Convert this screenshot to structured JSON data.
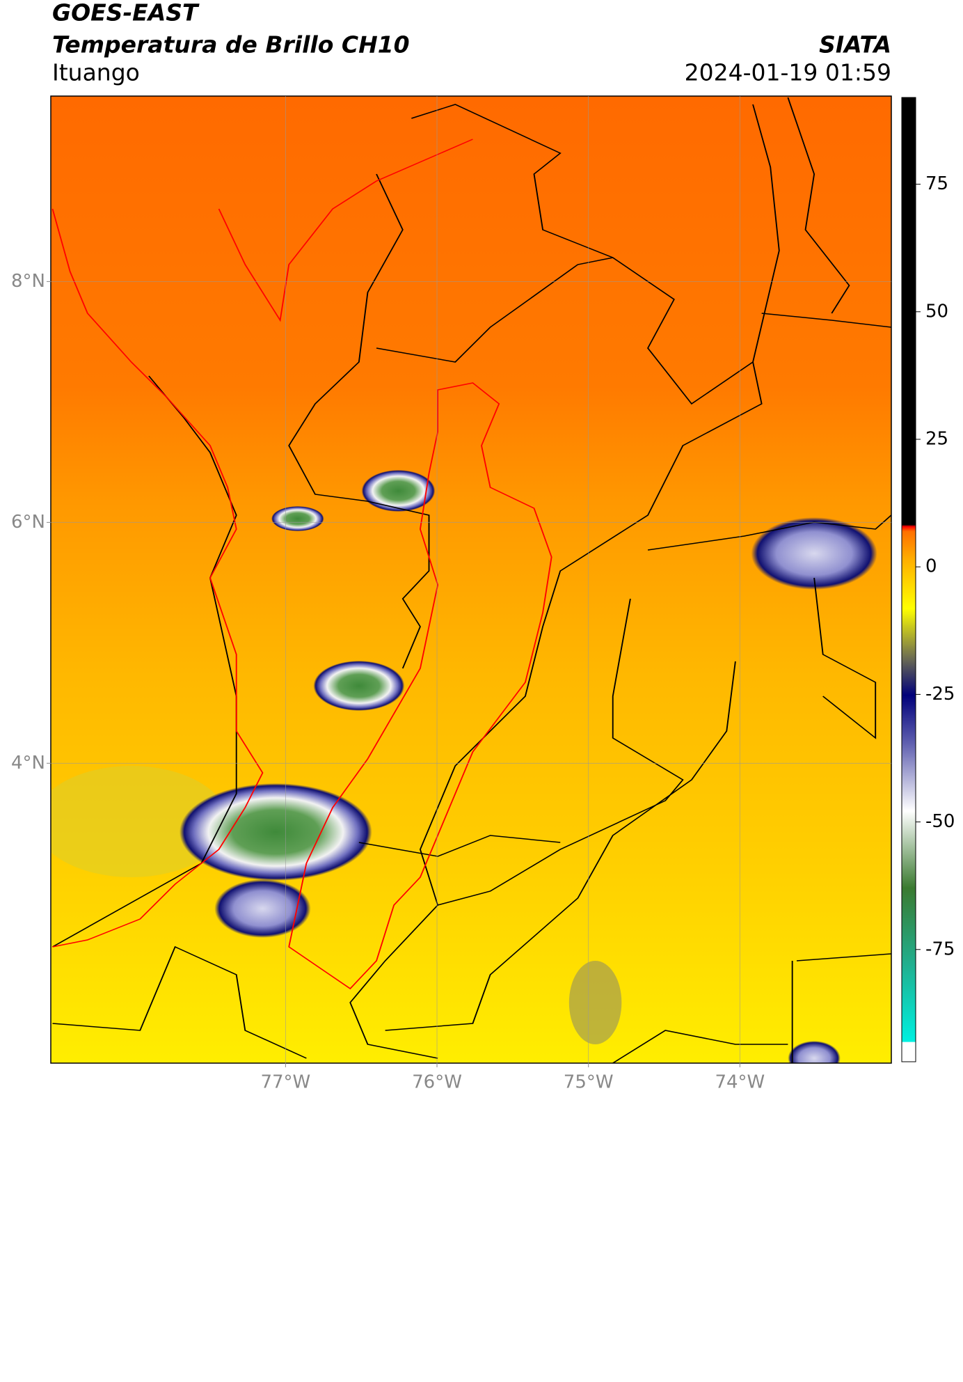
{
  "chart_data": {
    "type": "map",
    "title": "GOES-EAST",
    "subtitle": "Temperatura de Brillo CH10",
    "source": "SIATA",
    "location": "Ituango",
    "datetime": "2024-01-19 01:59",
    "xlim": [
      -78.55,
      -73.0
    ],
    "ylim": [
      1.51,
      9.54
    ],
    "xticks": [
      {
        "value": -77,
        "label": "77°W"
      },
      {
        "value": -76,
        "label": "76°W"
      },
      {
        "value": -75,
        "label": "75°W"
      },
      {
        "value": -74,
        "label": "74°W"
      }
    ],
    "yticks": [
      {
        "value": 8,
        "label": "8°N"
      },
      {
        "value": 6,
        "label": "6°N"
      },
      {
        "value": 4,
        "label": "4°N"
      }
    ],
    "grid": true,
    "colorbar": {
      "lim": [
        -97,
        92
      ],
      "ticks": [
        75,
        50,
        25,
        0,
        -25,
        -50,
        -75
      ]
    }
  }
}
